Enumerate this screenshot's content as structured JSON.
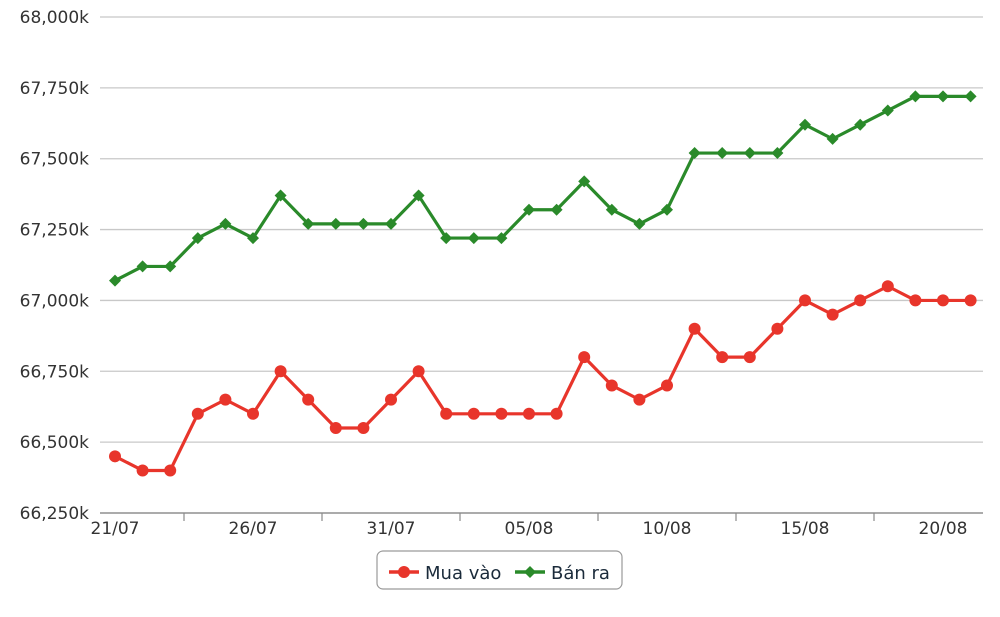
{
  "chart_data": {
    "type": "line",
    "title": "",
    "xlabel": "",
    "ylabel": "",
    "ylim": [
      66250,
      68000
    ],
    "yticks": [
      "66,250k",
      "66,500k",
      "66,750k",
      "67,000k",
      "67,250k",
      "67,500k",
      "67,750k",
      "68,000k"
    ],
    "xtick_labels": [
      "21/07",
      "26/07",
      "31/07",
      "05/08",
      "10/08",
      "15/08",
      "20/08"
    ],
    "x": [
      "21/07",
      "22/07",
      "23/07",
      "24/07",
      "25/07",
      "26/07",
      "27/07",
      "28/07",
      "29/07",
      "30/07",
      "31/07",
      "01/08",
      "02/08",
      "03/08",
      "04/08",
      "05/08",
      "06/08",
      "07/08",
      "08/08",
      "09/08",
      "10/08",
      "11/08",
      "12/08",
      "13/08",
      "14/08",
      "15/08",
      "16/08",
      "17/08",
      "18/08",
      "19/08",
      "20/08",
      "21/08"
    ],
    "grid": true,
    "legend_position": "bottom-center",
    "series": [
      {
        "name": "Mua vào",
        "color": "#e8352b",
        "marker": "circle",
        "values": [
          66450,
          66400,
          66400,
          66600,
          66650,
          66600,
          66750,
          66650,
          66550,
          66550,
          66650,
          66750,
          66600,
          66600,
          66600,
          66600,
          66600,
          66800,
          66700,
          66650,
          66700,
          66900,
          66800,
          66800,
          66900,
          67000,
          66950,
          67000,
          67050,
          67000,
          67000,
          67000
        ]
      },
      {
        "name": "Bán ra",
        "color": "#2a8a2a",
        "marker": "diamond",
        "values": [
          67070,
          67120,
          67120,
          67220,
          67270,
          67220,
          67370,
          67270,
          67270,
          67270,
          67270,
          67370,
          67220,
          67220,
          67220,
          67320,
          67320,
          67420,
          67320,
          67270,
          67320,
          67520,
          67520,
          67520,
          67520,
          67620,
          67570,
          67620,
          67670,
          67720,
          67720,
          67720
        ]
      }
    ]
  }
}
